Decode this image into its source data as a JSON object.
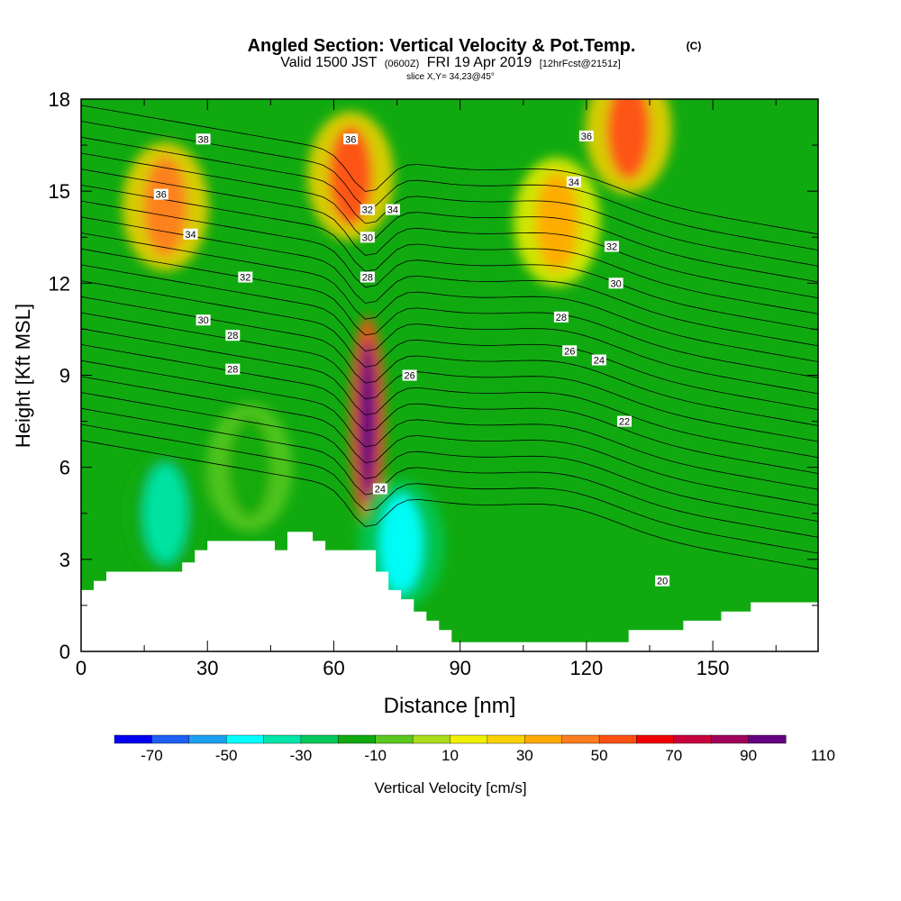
{
  "chart_data": {
    "type": "heatmap",
    "title": "Angled Section: Vertical Velocity & Pot.Temp.",
    "title_suffix": "(C)",
    "subtitle_main_a": "Valid 1500 JST",
    "subtitle_small_a": "(0600Z)",
    "subtitle_main_b": "FRI 19 Apr 2019",
    "subtitle_small_b": "[12hrFcst@2151z]",
    "slice_label": "slice X,Y= 34,23@45°",
    "xlabel": "Distance [nm]",
    "ylabel": "Height [Kft MSL]",
    "xlim": [
      0,
      175
    ],
    "ylim": [
      0,
      18
    ],
    "x_ticks": [
      0,
      30,
      60,
      90,
      120,
      150
    ],
    "y_ticks": [
      0,
      3,
      6,
      9,
      12,
      15,
      18
    ],
    "colorbar": {
      "label": "Vertical Velocity [cm/s]",
      "tick_labels": [
        "-70",
        "-50",
        "-30",
        "-10",
        "10",
        "30",
        "50",
        "70",
        "90",
        "110"
      ],
      "colors": [
        "#0000f0",
        "#1f5ff5",
        "#1ea0f0",
        "#00ffff",
        "#00e6aa",
        "#00c85a",
        "#10aa10",
        "#5ac81e",
        "#aadc1e",
        "#f0f000",
        "#fad200",
        "#ffaa00",
        "#ff7d1e",
        "#ff5014",
        "#f00000",
        "#c8003c",
        "#a0005a",
        "#640082"
      ]
    },
    "velocity_features": [
      {
        "x": 20,
        "y": 14.5,
        "value": 45
      },
      {
        "x": 64,
        "y": 15.5,
        "value": 50
      },
      {
        "x": 68,
        "y": 7.5,
        "value": 120
      },
      {
        "x": 113,
        "y": 14,
        "value": 30
      },
      {
        "x": 130,
        "y": 17,
        "value": 55
      },
      {
        "x": 20,
        "y": 4.5,
        "value": -35
      },
      {
        "x": 76,
        "y": 3.5,
        "value": -50
      },
      {
        "x": 40,
        "y": 6,
        "value": -15
      }
    ],
    "isentrope_labels": [
      {
        "x": 29,
        "y": 16.7,
        "text": "38"
      },
      {
        "x": 64,
        "y": 16.7,
        "text": "36"
      },
      {
        "x": 120,
        "y": 16.8,
        "text": "36"
      },
      {
        "x": 19,
        "y": 14.9,
        "text": "36"
      },
      {
        "x": 117,
        "y": 15.3,
        "text": "34"
      },
      {
        "x": 26,
        "y": 13.6,
        "text": "34"
      },
      {
        "x": 68,
        "y": 14.4,
        "text": "32"
      },
      {
        "x": 74,
        "y": 14.4,
        "text": "34"
      },
      {
        "x": 68,
        "y": 13.5,
        "text": "30"
      },
      {
        "x": 126,
        "y": 13.2,
        "text": "32"
      },
      {
        "x": 39,
        "y": 12.2,
        "text": "32"
      },
      {
        "x": 127,
        "y": 12.0,
        "text": "30"
      },
      {
        "x": 68,
        "y": 12.2,
        "text": "28"
      },
      {
        "x": 29,
        "y": 10.8,
        "text": "30"
      },
      {
        "x": 114,
        "y": 10.9,
        "text": "28"
      },
      {
        "x": 36,
        "y": 10.3,
        "text": "28"
      },
      {
        "x": 116,
        "y": 9.8,
        "text": "26"
      },
      {
        "x": 123,
        "y": 9.5,
        "text": "24"
      },
      {
        "x": 36,
        "y": 9.2,
        "text": "28"
      },
      {
        "x": 78,
        "y": 9.0,
        "text": "26"
      },
      {
        "x": 129,
        "y": 7.5,
        "text": "22"
      },
      {
        "x": 71,
        "y": 5.3,
        "text": "24"
      },
      {
        "x": 138,
        "y": 2.3,
        "text": "20"
      }
    ],
    "terrain": [
      [
        0,
        2.0
      ],
      [
        3,
        2.0
      ],
      [
        3,
        2.3
      ],
      [
        6,
        2.3
      ],
      [
        6,
        2.6
      ],
      [
        24,
        2.6
      ],
      [
        24,
        2.9
      ],
      [
        27,
        2.9
      ],
      [
        27,
        3.3
      ],
      [
        30,
        3.3
      ],
      [
        30,
        3.6
      ],
      [
        46,
        3.6
      ],
      [
        46,
        3.3
      ],
      [
        49,
        3.3
      ],
      [
        49,
        3.9
      ],
      [
        55,
        3.9
      ],
      [
        55,
        3.6
      ],
      [
        58,
        3.6
      ],
      [
        58,
        3.3
      ],
      [
        70,
        3.3
      ],
      [
        70,
        2.6
      ],
      [
        73,
        2.6
      ],
      [
        73,
        2.0
      ],
      [
        76,
        2.0
      ],
      [
        76,
        1.7
      ],
      [
        79,
        1.7
      ],
      [
        79,
        1.3
      ],
      [
        82,
        1.3
      ],
      [
        82,
        1.0
      ],
      [
        85,
        1.0
      ],
      [
        85,
        0.7
      ],
      [
        88,
        0.7
      ],
      [
        88,
        0.3
      ],
      [
        130,
        0.3
      ],
      [
        130,
        0.7
      ],
      [
        143,
        0.7
      ],
      [
        143,
        1.0
      ],
      [
        152,
        1.0
      ],
      [
        152,
        1.3
      ],
      [
        159,
        1.3
      ],
      [
        159,
        1.6
      ],
      [
        175,
        1.6
      ]
    ]
  }
}
